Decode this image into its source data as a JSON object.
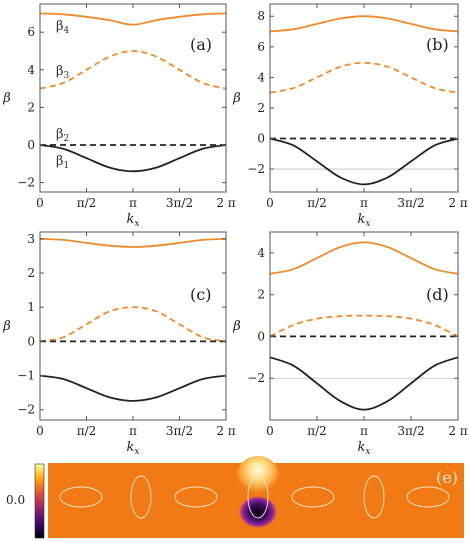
{
  "chart_data": [
    {
      "panel": "(a)",
      "type": "line",
      "xlabel": "k",
      "xlabel_sub": "x",
      "ylabel": "β",
      "xticks": [
        "0",
        "π/2",
        "π",
        "3π/2",
        "2 π"
      ],
      "yticks": [
        "−2",
        "0",
        "2",
        "4",
        "6"
      ],
      "xlim": [
        0,
        6.2832
      ],
      "ylim": [
        -2.5,
        7.5
      ],
      "grid_y": [],
      "band_labels": [
        "β4",
        "β3",
        "β2",
        "β1"
      ],
      "series": [
        {
          "band": 4,
          "style": "solid",
          "color": "#f08a2a",
          "x": [
            0,
            0.785,
            1.571,
            2.356,
            3.142,
            3.927,
            4.712,
            5.498,
            6.283
          ],
          "y": [
            7.0,
            6.95,
            6.82,
            6.64,
            6.4,
            6.64,
            6.82,
            6.95,
            7.0
          ]
        },
        {
          "band": 3,
          "style": "dashed",
          "color": "#f08a2a",
          "x": [
            0,
            0.785,
            1.571,
            2.356,
            3.142,
            3.927,
            4.712,
            5.498,
            6.283
          ],
          "y": [
            3.0,
            3.3,
            4.0,
            4.7,
            5.0,
            4.7,
            4.0,
            3.3,
            3.0
          ]
        },
        {
          "band": 2,
          "style": "dashed",
          "color": "#222222",
          "x": [
            0,
            6.283
          ],
          "y": [
            0.0,
            0.0
          ]
        },
        {
          "band": 1,
          "style": "solid",
          "color": "#222222",
          "x": [
            0,
            0.785,
            1.571,
            2.356,
            3.142,
            3.927,
            4.712,
            5.498,
            6.283
          ],
          "y": [
            0.0,
            -0.2,
            -0.7,
            -1.2,
            -1.4,
            -1.2,
            -0.7,
            -0.2,
            0.0
          ]
        }
      ]
    },
    {
      "panel": "(b)",
      "type": "line",
      "xlabel": "k",
      "xlabel_sub": "x",
      "ylabel": "β",
      "xticks": [
        "0",
        "π/2",
        "π",
        "3π/2",
        "2 π"
      ],
      "yticks": [
        "−2",
        "0",
        "2",
        "4",
        "6",
        "8"
      ],
      "xlim": [
        0,
        6.2832
      ],
      "ylim": [
        -3.5,
        8.8
      ],
      "grid_y": [
        -2
      ],
      "series": [
        {
          "band": 4,
          "style": "solid",
          "color": "#f08a2a",
          "x": [
            0,
            0.785,
            1.571,
            2.356,
            3.142,
            3.927,
            4.712,
            5.498,
            6.283
          ],
          "y": [
            7.0,
            7.15,
            7.5,
            7.85,
            8.0,
            7.85,
            7.5,
            7.15,
            7.0
          ]
        },
        {
          "band": 3,
          "style": "dashed",
          "color": "#f08a2a",
          "x": [
            0,
            0.785,
            1.571,
            2.356,
            3.142,
            3.927,
            4.712,
            5.498,
            6.283
          ],
          "y": [
            3.0,
            3.3,
            4.0,
            4.7,
            4.95,
            4.7,
            4.0,
            3.3,
            3.0
          ]
        },
        {
          "band": 2,
          "style": "dashed",
          "color": "#222222",
          "x": [
            0,
            6.283
          ],
          "y": [
            0.0,
            0.0
          ]
        },
        {
          "band": 1,
          "style": "solid",
          "color": "#222222",
          "x": [
            0,
            0.785,
            1.571,
            2.356,
            3.142,
            3.927,
            4.712,
            5.498,
            6.283
          ],
          "y": [
            0.0,
            -0.45,
            -1.5,
            -2.55,
            -3.0,
            -2.55,
            -1.5,
            -0.45,
            0.0
          ]
        }
      ]
    },
    {
      "panel": "(c)",
      "type": "line",
      "xlabel": "k",
      "xlabel_sub": "x",
      "ylabel": "β",
      "xticks": [
        "0",
        "π/2",
        "π",
        "3π/2",
        "2 π"
      ],
      "yticks": [
        "−2",
        "−1",
        "0",
        "1",
        "2",
        "3"
      ],
      "xlim": [
        0,
        6.2832
      ],
      "ylim": [
        -2.3,
        3.2
      ],
      "grid_y": [],
      "series": [
        {
          "band": 4,
          "style": "solid",
          "color": "#f08a2a",
          "x": [
            0,
            0.785,
            1.571,
            2.356,
            3.142,
            3.927,
            4.712,
            5.498,
            6.283
          ],
          "y": [
            3.0,
            2.97,
            2.88,
            2.8,
            2.76,
            2.8,
            2.88,
            2.97,
            3.0
          ]
        },
        {
          "band": 3,
          "style": "dashed",
          "color": "#f08a2a",
          "x": [
            0,
            0.785,
            1.571,
            2.356,
            3.142,
            3.927,
            4.712,
            5.498,
            6.283
          ],
          "y": [
            0.0,
            0.12,
            0.5,
            0.88,
            1.0,
            0.88,
            0.5,
            0.12,
            0.0
          ]
        },
        {
          "band": 2,
          "style": "dashed",
          "color": "#222222",
          "x": [
            0,
            6.283
          ],
          "y": [
            0.0,
            0.0
          ]
        },
        {
          "band": 1,
          "style": "solid",
          "color": "#222222",
          "x": [
            0,
            0.785,
            1.571,
            2.356,
            3.142,
            3.927,
            4.712,
            5.498,
            6.283
          ],
          "y": [
            -1.0,
            -1.1,
            -1.37,
            -1.64,
            -1.74,
            -1.64,
            -1.37,
            -1.1,
            -1.0
          ]
        }
      ]
    },
    {
      "panel": "(d)",
      "type": "line",
      "xlabel": "k",
      "xlabel_sub": "x",
      "ylabel": "β",
      "xticks": [
        "0",
        "π/2",
        "π",
        "3π/2",
        "2 π"
      ],
      "yticks": [
        "−2",
        "0",
        "2",
        "4"
      ],
      "xlim": [
        0,
        6.2832
      ],
      "ylim": [
        -4.0,
        5.0
      ],
      "grid_y": [
        -2
      ],
      "series": [
        {
          "band": 4,
          "style": "solid",
          "color": "#f08a2a",
          "x": [
            0,
            0.785,
            1.571,
            2.356,
            3.142,
            3.927,
            4.712,
            5.498,
            6.283
          ],
          "y": [
            3.0,
            3.22,
            3.75,
            4.28,
            4.5,
            4.28,
            3.75,
            3.22,
            3.0
          ]
        },
        {
          "band": 3,
          "style": "dashed",
          "color": "#f08a2a",
          "x": [
            0,
            0.785,
            1.571,
            2.356,
            3.142,
            3.927,
            4.712,
            5.498,
            6.283
          ],
          "y": [
            0.0,
            0.55,
            0.85,
            0.97,
            1.0,
            0.97,
            0.85,
            0.55,
            0.0
          ]
        },
        {
          "band": 2,
          "style": "dashed",
          "color": "#222222",
          "x": [
            0,
            6.283
          ],
          "y": [
            0.0,
            0.0
          ]
        },
        {
          "band": 1,
          "style": "solid",
          "color": "#222222",
          "x": [
            0,
            0.785,
            1.571,
            2.356,
            3.142,
            3.927,
            4.712,
            5.498,
            6.283
          ],
          "y": [
            -1.0,
            -1.4,
            -2.25,
            -3.1,
            -3.5,
            -3.1,
            -2.25,
            -1.4,
            -1.0
          ]
        }
      ]
    },
    {
      "panel": "(e)",
      "type": "heatmap",
      "colorbar_ticks": [
        "0.0"
      ],
      "background_color": "#f27a14",
      "outline_count": 7
    }
  ]
}
